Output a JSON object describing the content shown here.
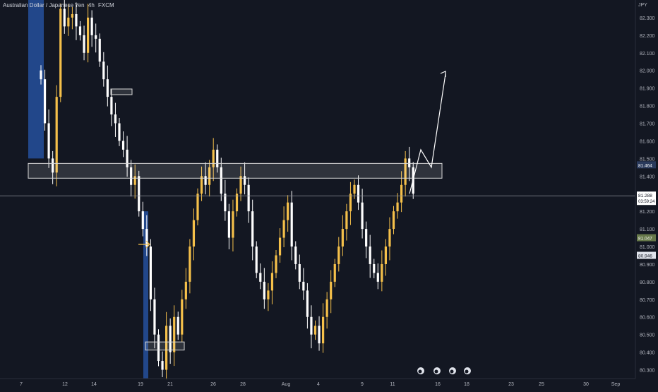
{
  "header": {
    "symbol_name": "Australian Dollar / Japanese Yen",
    "interval": "4h",
    "exchange": "FXCM"
  },
  "axis": {
    "currency": "JPY",
    "current_price": "81.288",
    "countdown": "03:59:24",
    "zone_price": "81.464",
    "tag_1": "81.047",
    "tag_2": "80.946"
  },
  "colors": {
    "background": "#131722",
    "bull": "#f5c04a",
    "bear": "#ffffff",
    "highlight": "#2f6fe0",
    "text": "#d1d4dc",
    "grid_text": "#b2b5be"
  },
  "chart_data": {
    "type": "candlestick",
    "y_unit": "JPY",
    "ylim": [
      80.25,
      82.4
    ],
    "y_ticks": [
      80.3,
      80.4,
      80.5,
      80.6,
      80.7,
      80.8,
      80.9,
      81.0,
      81.1,
      81.2,
      81.3,
      81.4,
      81.5,
      81.6,
      81.7,
      81.8,
      81.9,
      82.0,
      82.1,
      82.2,
      82.3
    ],
    "x_ticks": [
      "7",
      "12",
      "14",
      "19",
      "21",
      "26",
      "28",
      "Aug",
      "4",
      "9",
      "11",
      "16",
      "18",
      "23",
      "25",
      "30",
      "Sep"
    ],
    "resistance_zone": [
      81.4,
      81.46
    ],
    "support_zone": [
      80.42,
      80.45
    ],
    "projection_path": [
      81.3,
      81.55,
      81.45,
      81.98
    ],
    "candles_close": [
      81.95,
      81.7,
      81.5,
      81.42,
      81.85,
      82.35,
      82.25,
      82.3,
      82.32,
      82.25,
      82.2,
      82.1,
      82.3,
      82.2,
      82.18,
      82.05,
      81.95,
      81.85,
      81.75,
      81.7,
      81.6,
      81.55,
      81.45,
      81.35,
      81.4,
      81.2,
      81.1,
      81.0,
      80.7,
      80.5,
      80.35,
      80.3,
      80.55,
      80.4,
      80.6,
      80.5,
      80.7,
      80.8,
      81.0,
      81.15,
      81.3,
      81.4,
      81.35,
      81.45,
      81.55,
      81.45,
      81.3,
      81.2,
      81.05,
      81.2,
      81.3,
      81.4,
      81.35,
      81.2,
      81.0,
      80.85,
      80.8,
      80.7,
      80.75,
      80.85,
      80.95,
      81.05,
      81.15,
      81.25,
      81.0,
      80.9,
      80.8,
      80.75,
      80.6,
      80.5,
      80.55,
      80.45,
      80.6,
      80.7,
      80.8,
      80.9,
      81.0,
      81.1,
      81.2,
      81.3,
      81.35,
      81.25,
      81.1,
      81.0,
      80.9,
      80.85,
      80.8,
      80.9,
      81.0,
      81.1,
      81.2,
      81.25,
      81.35,
      81.5,
      81.45,
      81.3
    ]
  }
}
